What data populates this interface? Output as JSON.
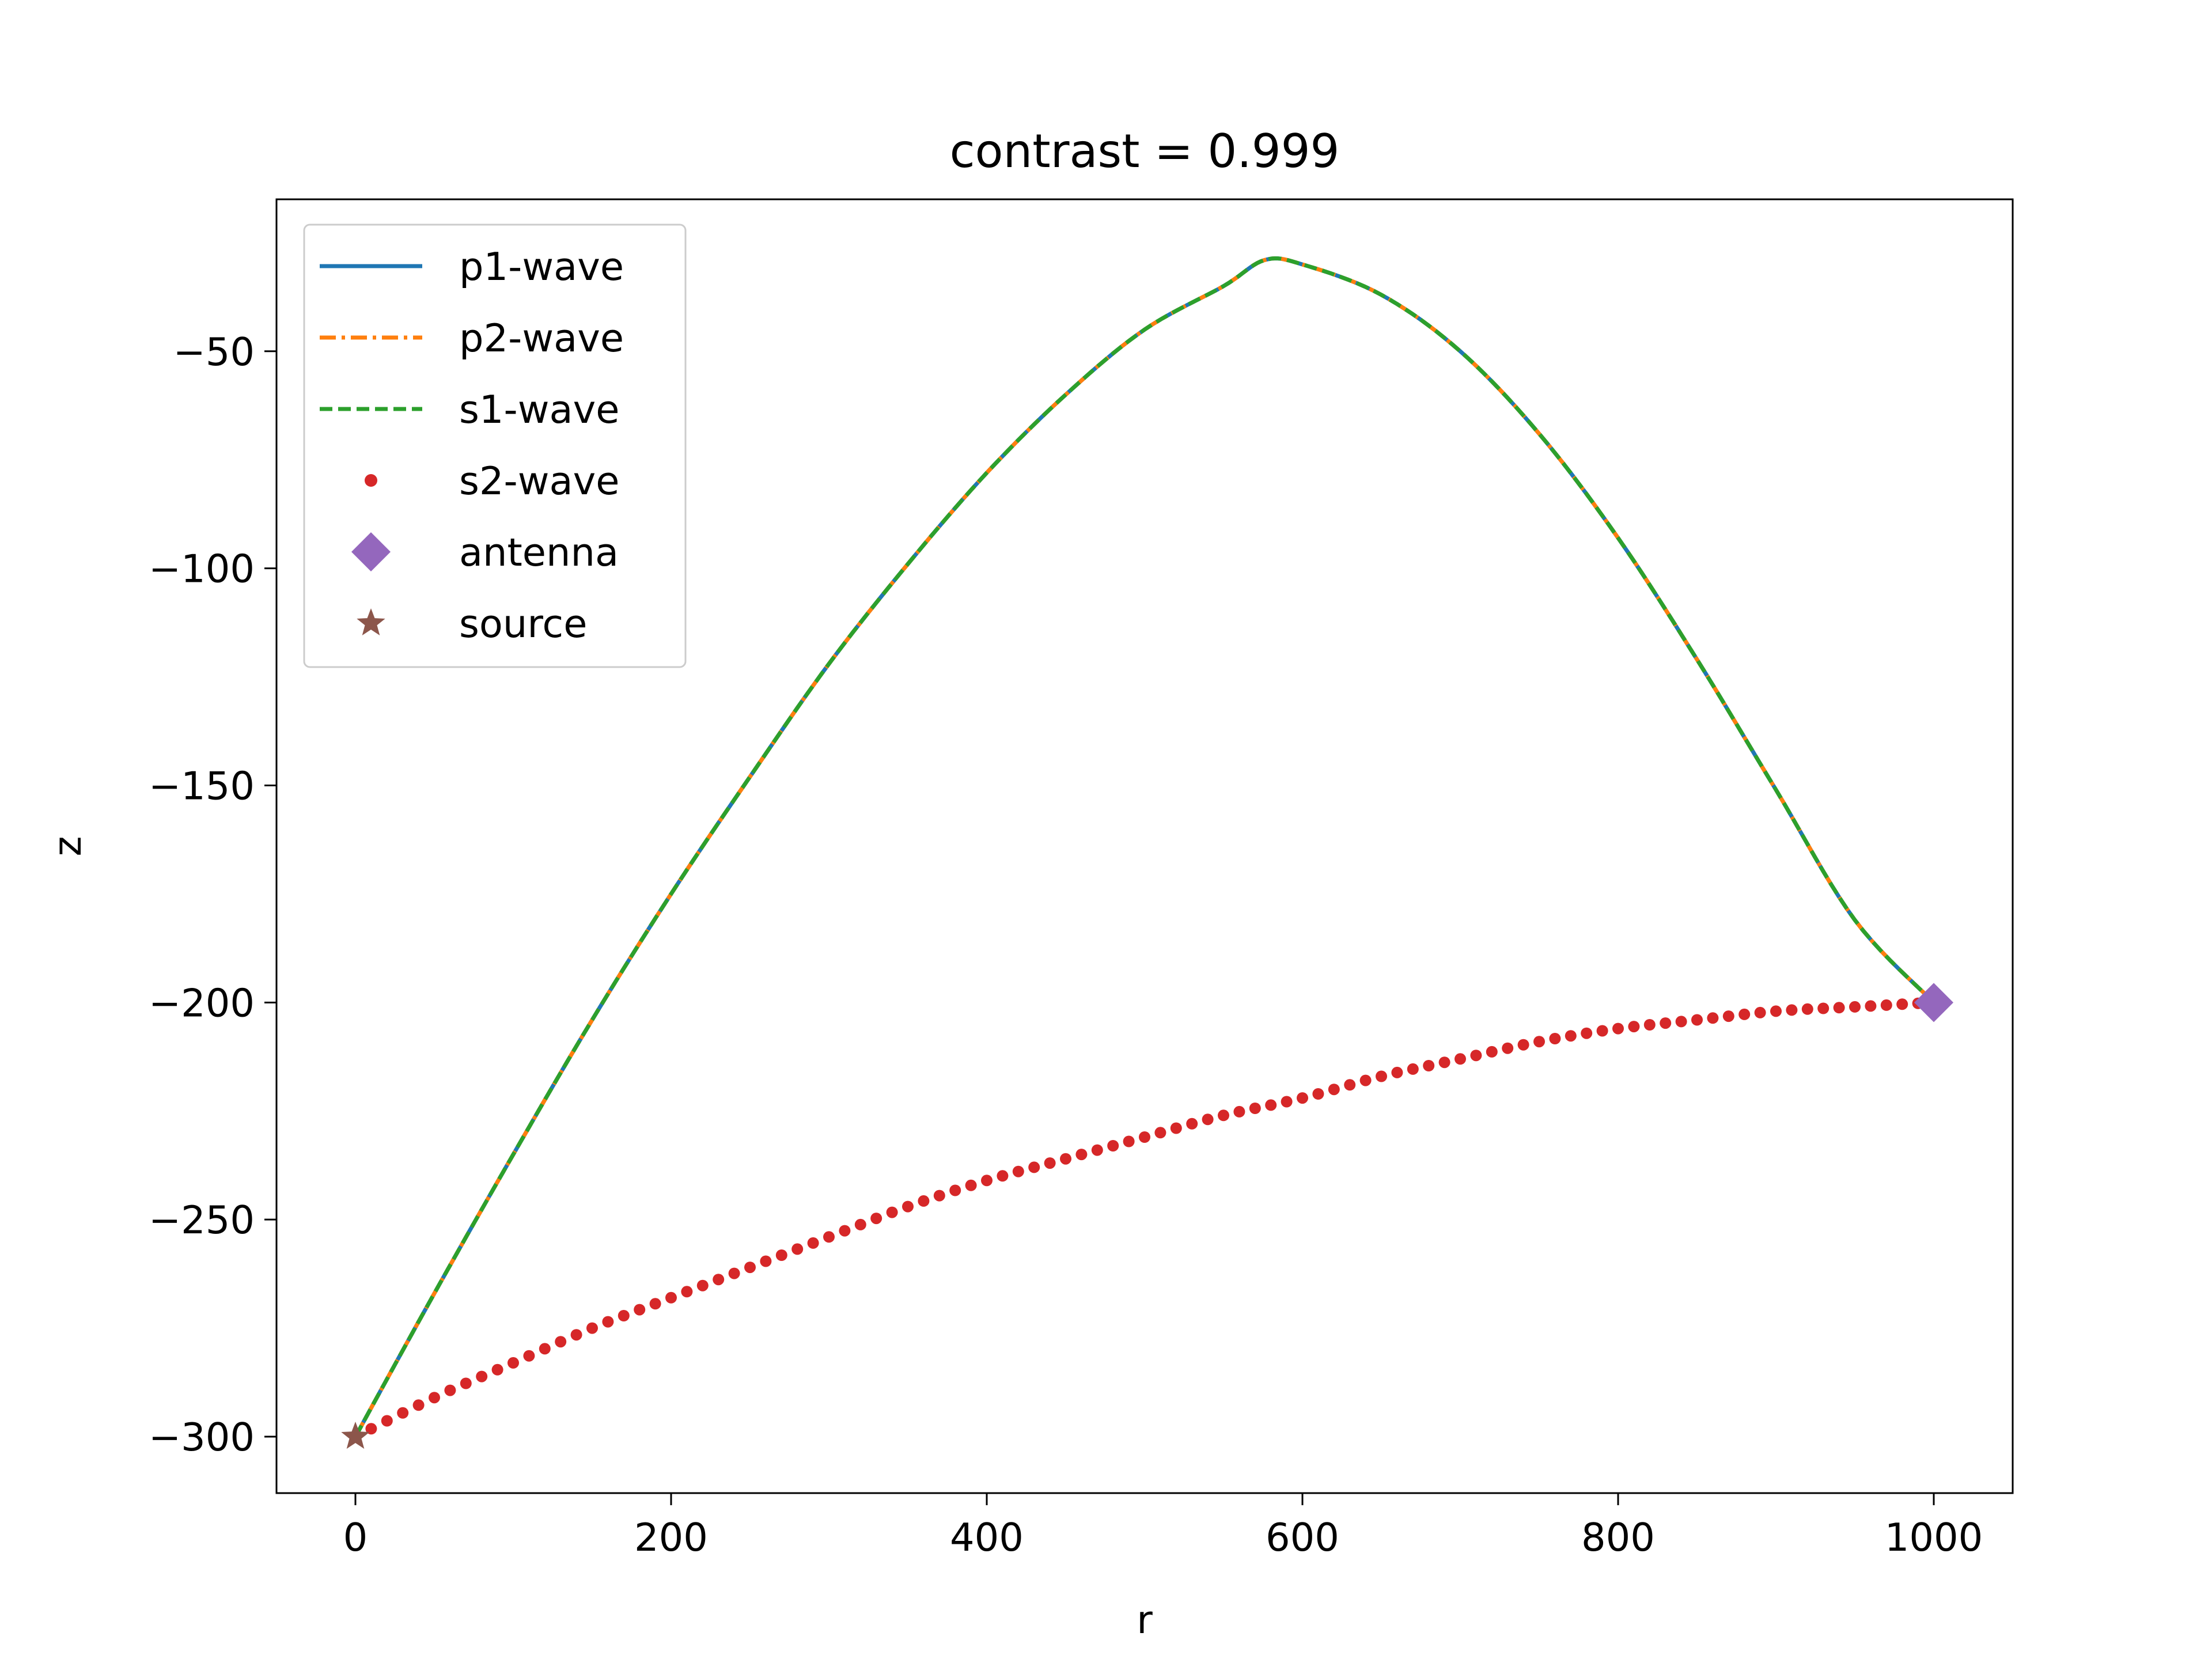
{
  "chart_data": {
    "type": "line",
    "title": "contrast = 0.999",
    "xlabel": "r",
    "ylabel": "z",
    "xlim": [
      -50,
      1050
    ],
    "ylim": [
      -313,
      -15
    ],
    "xticks": [
      0,
      200,
      400,
      600,
      800,
      1000
    ],
    "yticks": [
      -50,
      -100,
      -150,
      -200,
      -250,
      -300
    ],
    "xtick_labels": [
      "0",
      "200",
      "400",
      "600",
      "800",
      "1000"
    ],
    "ytick_labels": [
      "−50",
      "−100",
      "−150",
      "−200",
      "−250",
      "−300"
    ],
    "grid": false,
    "legend_position": "upper-left",
    "series": [
      {
        "name": "p1-wave",
        "style": "solid",
        "color": "#1f77b4",
        "x": [
          0,
          50,
          100,
          150,
          200,
          250,
          300,
          350,
          400,
          450,
          500,
          550,
          576,
          600,
          650,
          700,
          750,
          800,
          850,
          900,
          950,
          1000
        ],
        "y": [
          -300,
          -267,
          -235,
          -204,
          -175,
          -148,
          -122,
          -99,
          -78,
          -60,
          -45,
          -35,
          -29,
          -30,
          -37,
          -50,
          -69,
          -93,
          -121,
          -151,
          -181,
          -200
        ]
      },
      {
        "name": "p2-wave",
        "style": "dashdot",
        "color": "#ff7f0e",
        "x": [
          0,
          50,
          100,
          150,
          200,
          250,
          300,
          350,
          400,
          450,
          500,
          550,
          576,
          600,
          650,
          700,
          750,
          800,
          850,
          900,
          950,
          1000
        ],
        "y": [
          -300,
          -267,
          -235,
          -204,
          -175,
          -148,
          -122,
          -99,
          -78,
          -60,
          -45,
          -35,
          -29,
          -30,
          -37,
          -50,
          -69,
          -93,
          -121,
          -151,
          -181,
          -200
        ]
      },
      {
        "name": "s1-wave",
        "style": "dashed",
        "color": "#2ca02c",
        "x": [
          0,
          50,
          100,
          150,
          200,
          250,
          300,
          350,
          400,
          450,
          500,
          550,
          576,
          600,
          650,
          700,
          750,
          800,
          850,
          900,
          950,
          1000
        ],
        "y": [
          -300,
          -267,
          -235,
          -204,
          -175,
          -148,
          -122,
          -99,
          -78,
          -60,
          -45,
          -35,
          -29,
          -30,
          -37,
          -50,
          -69,
          -93,
          -121,
          -151,
          -181,
          -200
        ]
      },
      {
        "name": "s2-wave",
        "style": "dots",
        "color": "#d62728",
        "x": [
          0,
          50,
          100,
          150,
          200,
          250,
          300,
          350,
          400,
          450,
          500,
          550,
          600,
          650,
          700,
          750,
          800,
          850,
          900,
          950,
          1000
        ],
        "y": [
          -300,
          -291,
          -283,
          -275,
          -268,
          -261,
          -254,
          -247,
          -241,
          -236,
          -231,
          -226,
          -222,
          -217,
          -213,
          -209,
          -206,
          -204,
          -202,
          -201,
          -200
        ]
      },
      {
        "name": "antenna",
        "style": "marker-diamond",
        "color": "#9467bd",
        "x": [
          1000
        ],
        "y": [
          -200
        ]
      },
      {
        "name": "source",
        "style": "marker-star",
        "color": "#8c564b",
        "x": [
          0
        ],
        "y": [
          -300
        ]
      }
    ]
  }
}
